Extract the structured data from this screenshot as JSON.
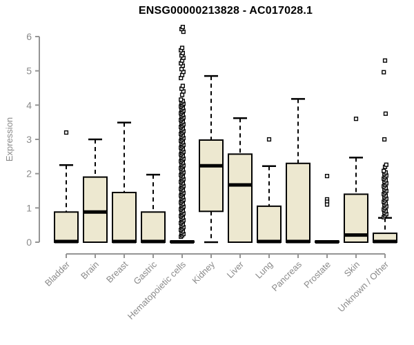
{
  "title": "ENSG00000213828 - AC017028.1",
  "chart_data": {
    "type": "boxplot",
    "title": "ENSG00000213828 - AC017028.1",
    "xlabel": "",
    "ylabel": "Expression",
    "ylim": [
      0,
      6
    ],
    "yticks": [
      0,
      1,
      2,
      3,
      4,
      5,
      6
    ],
    "grid": false,
    "legend": "none",
    "categories": [
      "Bladder",
      "Brain",
      "Breast",
      "Gastric",
      "Hematopoietic cells",
      "Kidney",
      "Liver",
      "Lung",
      "Pancreas",
      "Prostate",
      "Skin",
      "Unknown / Other"
    ],
    "series": [
      {
        "name": "Bladder",
        "q1": 0,
        "median": 0.02,
        "q3": 0.88,
        "whisker_low": 0,
        "whisker_high": 2.25,
        "outliers": [
          3.2
        ]
      },
      {
        "name": "Brain",
        "q1": 0,
        "median": 0.88,
        "q3": 1.9,
        "whisker_low": 0,
        "whisker_high": 3.0,
        "outliers": []
      },
      {
        "name": "Breast",
        "q1": 0,
        "median": 0.02,
        "q3": 1.45,
        "whisker_low": 0,
        "whisker_high": 3.49,
        "outliers": []
      },
      {
        "name": "Gastric",
        "q1": 0,
        "median": 0.02,
        "q3": 0.88,
        "whisker_low": 0,
        "whisker_high": 1.97,
        "outliers": []
      },
      {
        "name": "Hematopoietic cells",
        "q1": 0,
        "median": 0.01,
        "q3": 0.03,
        "whisker_low": 0,
        "whisker_high": 0.03,
        "outliers": [
          4.3,
          4.4,
          4.48,
          4.56,
          4.79,
          4.88,
          4.97,
          5.05,
          5.15,
          5.22,
          5.3,
          5.38,
          5.45,
          5.52,
          5.6,
          5.67,
          6.14,
          6.22,
          6.28
        ],
        "outliers_dense": {
          "from": 0.16,
          "to": 4.19,
          "step": 0.04
        }
      },
      {
        "name": "Kidney",
        "q1": 0.9,
        "median": 2.23,
        "q3": 2.98,
        "whisker_low": 0,
        "whisker_high": 4.85,
        "outliers": []
      },
      {
        "name": "Liver",
        "q1": 0,
        "median": 1.67,
        "q3": 2.57,
        "whisker_low": 0,
        "whisker_high": 3.62,
        "outliers": []
      },
      {
        "name": "Lung",
        "q1": 0,
        "median": 0.02,
        "q3": 1.05,
        "whisker_low": 0,
        "whisker_high": 2.22,
        "outliers": [
          3.0
        ]
      },
      {
        "name": "Pancreas",
        "q1": 0,
        "median": 0.02,
        "q3": 2.3,
        "whisker_low": 0,
        "whisker_high": 4.18,
        "outliers": []
      },
      {
        "name": "Prostate",
        "q1": 0,
        "median": 0.01,
        "q3": 0.03,
        "whisker_low": 0,
        "whisker_high": 0.03,
        "outliers": [
          1.93,
          1.25,
          1.18,
          1.1
        ]
      },
      {
        "name": "Skin",
        "q1": 0,
        "median": 0.21,
        "q3": 1.4,
        "whisker_low": 0,
        "whisker_high": 2.47,
        "outliers": [
          3.6
        ]
      },
      {
        "name": "Unknown / Other",
        "q1": 0,
        "median": 0.02,
        "q3": 0.26,
        "whisker_low": 0,
        "whisker_high": 0.71,
        "outliers": [
          2.2,
          2.26,
          3.0,
          3.75,
          4.96,
          5.3
        ],
        "outliers_dense": {
          "from": 0.73,
          "to": 2.1,
          "step": 0.045
        }
      }
    ],
    "colors": {
      "box_fill": "#EDE8D0",
      "box_border": "#000000",
      "median": "#000000",
      "whisker": "#000000",
      "outlier": "#000000",
      "axis_line": "#949494",
      "tick_label": "#8A8A8A",
      "axis_label": "#8A8A8A",
      "title": "#000000",
      "background": "#FFFFFF"
    }
  }
}
